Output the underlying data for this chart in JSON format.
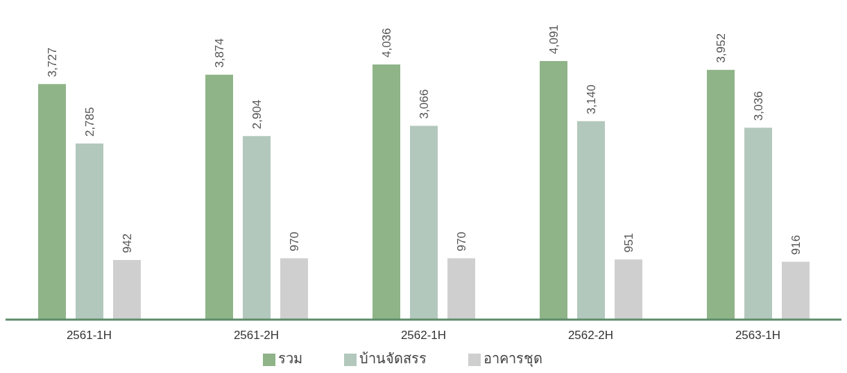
{
  "chart_data": {
    "type": "bar",
    "categories": [
      "2561-1H",
      "2561-2H",
      "2562-1H",
      "2562-2H",
      "2563-1H"
    ],
    "series": [
      {
        "name": "รวม",
        "color": "#8fb488",
        "values": [
          3727,
          3874,
          4036,
          4091,
          3952
        ],
        "value_labels": [
          "3,727",
          "3,874",
          "4,036",
          "4,091",
          "3,952"
        ]
      },
      {
        "name": "บ้านจัดสรร",
        "color": "#b3c8bc",
        "values": [
          2785,
          2904,
          3066,
          3140,
          3036
        ],
        "value_labels": [
          "2,785",
          "2,904",
          "3,066",
          "3,140",
          "3,036"
        ]
      },
      {
        "name": "อาคารชุด",
        "color": "#cfcfcf",
        "values": [
          942,
          970,
          970,
          951,
          916
        ],
        "value_labels": [
          "942",
          "970",
          "970",
          "951",
          "916"
        ]
      }
    ],
    "legend": "bottom",
    "grid": false
  }
}
